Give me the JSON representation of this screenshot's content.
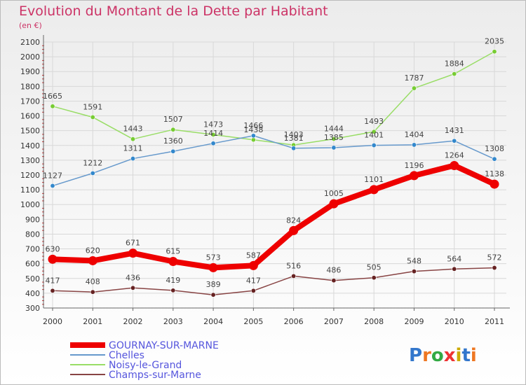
{
  "chart_data": {
    "type": "line",
    "title": "Evolution du Montant de la Dette par Habitant",
    "subtitle": "(en €)",
    "xlabel": "",
    "ylabel": "",
    "ylim": [
      300,
      2100
    ],
    "yticks": [
      300,
      400,
      500,
      600,
      700,
      800,
      900,
      1000,
      1100,
      1200,
      1300,
      1400,
      1500,
      1600,
      1700,
      1800,
      1900,
      2000,
      2100
    ],
    "categories": [
      "2000",
      "2001",
      "2002",
      "2003",
      "2004",
      "2005",
      "2006",
      "2007",
      "2008",
      "2009",
      "2010",
      "2011"
    ],
    "grid": true,
    "legend_position": "bottom-left",
    "series": [
      {
        "name": "Noisy-le-Grand",
        "color": "#99dd66",
        "dot_color": "#77cc33",
        "values": [
          1665,
          1591,
          1443,
          1507,
          1473,
          1438,
          1403,
          1444,
          1493,
          1787,
          1884,
          2035
        ],
        "labels": [
          "1665",
          "1591",
          "1443",
          "1507",
          "1473",
          "1438",
          "1403",
          "1444",
          "1493",
          "1787",
          "1884",
          "2035"
        ]
      },
      {
        "name": "Chelles",
        "color": "#6699cc",
        "dot_color": "#3388cc",
        "values": [
          1127,
          1212,
          1311,
          1360,
          1414,
          1466,
          1381,
          1385,
          1401,
          1404,
          1431,
          1308
        ],
        "labels": [
          "1127",
          "1212",
          "1311",
          "1360",
          "1414",
          "1466",
          "1381",
          "1385",
          "1401",
          "1404",
          "1431",
          "1308"
        ]
      },
      {
        "name": "Champs-sur-Marne",
        "color": "#884444",
        "dot_color": "#662222",
        "values": [
          417,
          408,
          436,
          419,
          389,
          417,
          516,
          486,
          505,
          548,
          564,
          572
        ],
        "labels": [
          "417",
          "408",
          "436",
          "419",
          "389",
          "417",
          "516",
          "486",
          "505",
          "548",
          "564",
          "572"
        ]
      },
      {
        "name": "GOURNAY-SUR-MARNE",
        "color": "#ee0000",
        "dot_color": "#ee0000",
        "values": [
          630,
          620,
          671,
          615,
          573,
          587,
          824,
          1005,
          1101,
          1196,
          1264,
          1138
        ],
        "labels": [
          "630",
          "620",
          "671",
          "615",
          "573",
          "587",
          "824",
          "1005",
          "1101",
          "1196",
          "1264",
          "1138"
        ]
      }
    ],
    "legend": [
      "GOURNAY-SUR-MARNE",
      "Chelles",
      "Noisy-le-Grand",
      "Champs-sur-Marne"
    ],
    "title_color": "#cc3366",
    "legend_text_color": "#5555dd"
  },
  "logo": {
    "text": "Proxiti"
  }
}
